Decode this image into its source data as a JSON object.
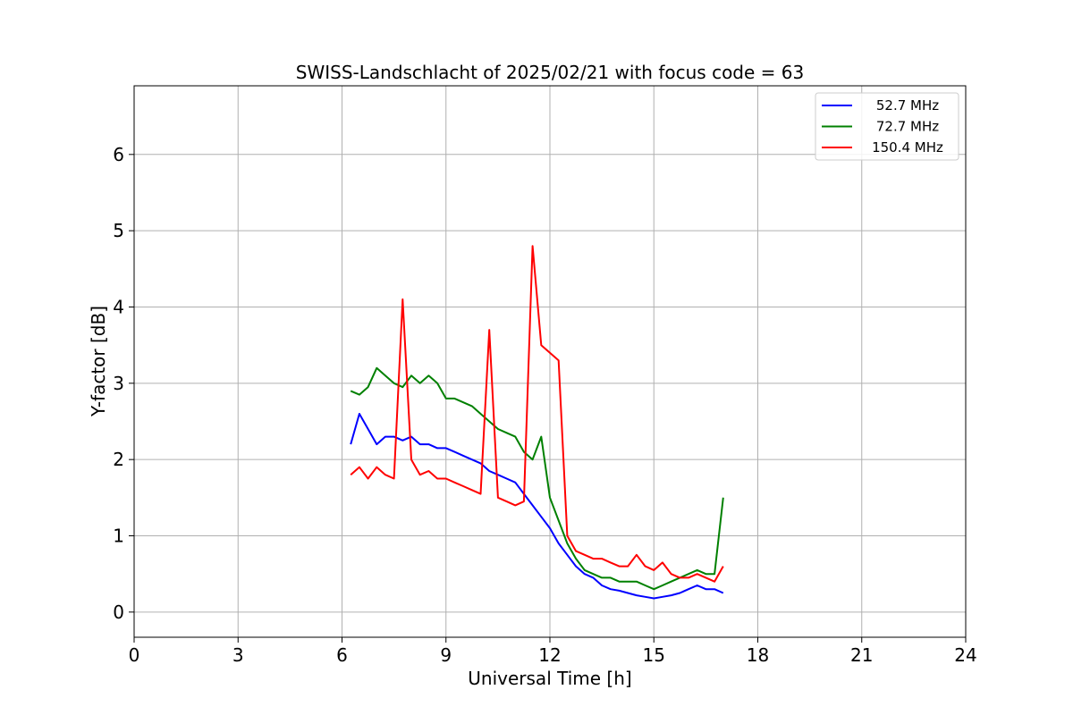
{
  "chart_data": {
    "type": "line",
    "title": "SWISS-Landschlacht of 2025/02/21 with focus code = 63",
    "xlabel": "Universal Time [h]",
    "ylabel": "Y-factor [dB]",
    "xlim": [
      0,
      24
    ],
    "ylim": [
      -0.33,
      6.9
    ],
    "xticks": [
      0,
      3,
      6,
      9,
      12,
      15,
      18,
      21,
      24
    ],
    "yticks": [
      0,
      1,
      2,
      3,
      4,
      5,
      6
    ],
    "grid": true,
    "legend_position": "top-right",
    "series": [
      {
        "name": "52.7 MHz",
        "color": "#0000ff",
        "x": [
          6.25,
          6.5,
          6.75,
          7.0,
          7.25,
          7.5,
          7.75,
          8.0,
          8.25,
          8.5,
          8.75,
          9.0,
          9.25,
          9.5,
          9.75,
          10.0,
          10.25,
          10.5,
          10.75,
          11.0,
          11.25,
          11.5,
          11.75,
          12.0,
          12.25,
          12.5,
          12.75,
          13.0,
          13.25,
          13.5,
          13.75,
          14.0,
          14.25,
          14.5,
          14.75,
          15.0,
          15.25,
          15.5,
          15.75,
          16.0,
          16.25,
          16.5,
          16.75,
          17.0
        ],
        "y": [
          2.2,
          2.6,
          2.4,
          2.2,
          2.3,
          2.3,
          2.25,
          2.3,
          2.2,
          2.2,
          2.15,
          2.15,
          2.1,
          2.05,
          2.0,
          1.95,
          1.85,
          1.8,
          1.75,
          1.7,
          1.55,
          1.4,
          1.25,
          1.1,
          0.9,
          0.75,
          0.6,
          0.5,
          0.45,
          0.35,
          0.3,
          0.28,
          0.25,
          0.22,
          0.2,
          0.18,
          0.2,
          0.22,
          0.25,
          0.3,
          0.35,
          0.3,
          0.3,
          0.25
        ]
      },
      {
        "name": "72.7 MHz",
        "color": "#008000",
        "x": [
          6.25,
          6.5,
          6.75,
          7.0,
          7.25,
          7.5,
          7.75,
          8.0,
          8.25,
          8.5,
          8.75,
          9.0,
          9.25,
          9.5,
          9.75,
          10.0,
          10.25,
          10.5,
          10.75,
          11.0,
          11.25,
          11.5,
          11.75,
          12.0,
          12.25,
          12.5,
          12.75,
          13.0,
          13.25,
          13.5,
          13.75,
          14.0,
          14.25,
          14.5,
          14.75,
          15.0,
          15.25,
          15.5,
          15.75,
          16.0,
          16.25,
          16.5,
          16.75,
          17.0
        ],
        "y": [
          2.9,
          2.85,
          2.95,
          3.2,
          3.1,
          3.0,
          2.95,
          3.1,
          3.0,
          3.1,
          3.0,
          2.8,
          2.8,
          2.75,
          2.7,
          2.6,
          2.5,
          2.4,
          2.35,
          2.3,
          2.1,
          2.0,
          2.3,
          1.5,
          1.2,
          0.9,
          0.7,
          0.55,
          0.5,
          0.45,
          0.45,
          0.4,
          0.4,
          0.4,
          0.35,
          0.3,
          0.35,
          0.4,
          0.45,
          0.5,
          0.55,
          0.5,
          0.5,
          1.5
        ]
      },
      {
        "name": "150.4 MHz",
        "color": "#ff0000",
        "x": [
          6.25,
          6.5,
          6.75,
          7.0,
          7.25,
          7.5,
          7.75,
          8.0,
          8.25,
          8.5,
          8.75,
          9.0,
          9.25,
          9.5,
          9.75,
          10.0,
          10.25,
          10.5,
          10.75,
          11.0,
          11.25,
          11.5,
          11.75,
          12.0,
          12.25,
          12.5,
          12.75,
          13.0,
          13.25,
          13.5,
          13.75,
          14.0,
          14.25,
          14.5,
          14.75,
          15.0,
          15.25,
          15.5,
          15.75,
          16.0,
          16.25,
          16.5,
          16.75,
          17.0
        ],
        "y": [
          1.8,
          1.9,
          1.75,
          1.9,
          1.8,
          1.75,
          4.1,
          2.0,
          1.8,
          1.85,
          1.75,
          1.75,
          1.7,
          1.65,
          1.6,
          1.55,
          3.7,
          1.5,
          1.45,
          1.4,
          1.45,
          4.8,
          3.5,
          3.4,
          3.3,
          1.0,
          0.8,
          0.75,
          0.7,
          0.7,
          0.65,
          0.6,
          0.6,
          0.75,
          0.6,
          0.55,
          0.65,
          0.5,
          0.45,
          0.45,
          0.5,
          0.45,
          0.4,
          0.6
        ]
      }
    ]
  }
}
